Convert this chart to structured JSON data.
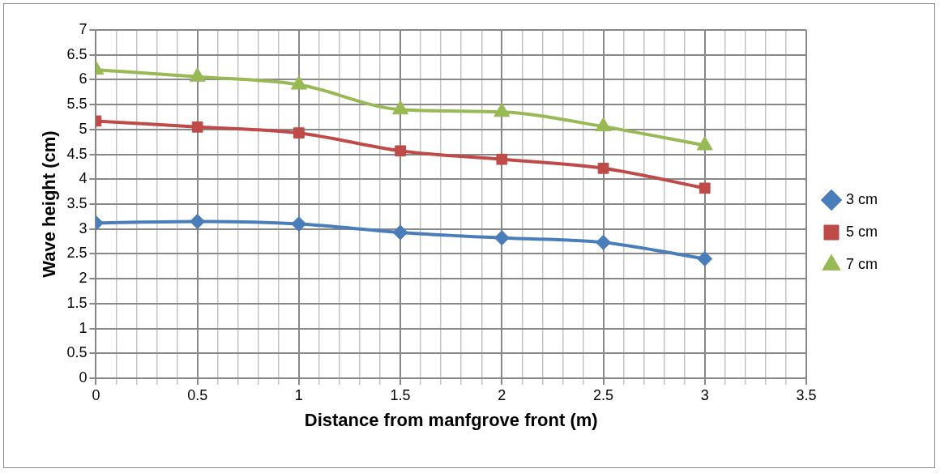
{
  "chart_data": {
    "type": "line",
    "xlabel": "Distance from manfgrove front (m)",
    "ylabel": "Wave height (cm)",
    "x": [
      0,
      0.5,
      1,
      1.5,
      2,
      2.5,
      3
    ],
    "series": [
      {
        "name": "3 cm",
        "color": "#4a7ebb",
        "marker": "diamond",
        "values": [
          3.12,
          3.15,
          3.1,
          2.93,
          2.82,
          2.73,
          2.4
        ]
      },
      {
        "name": "5 cm",
        "color": "#be4b48",
        "marker": "square",
        "values": [
          5.17,
          5.05,
          4.93,
          4.57,
          4.4,
          4.22,
          3.82
        ]
      },
      {
        "name": "7 cm",
        "color": "#98b954",
        "marker": "triangle",
        "values": [
          6.2,
          6.06,
          5.9,
          5.4,
          5.35,
          5.06,
          4.68
        ]
      }
    ],
    "xlim": [
      0,
      3.5
    ],
    "xticks": [
      0,
      {
        "value": 0.1,
        "label": null
      },
      {
        "value": 0.2,
        "label": null
      },
      {
        "value": 0.3,
        "label": null
      },
      {
        "value": 0.4,
        "label": null
      },
      0.5,
      {
        "value": 0.6,
        "label": null
      },
      {
        "value": 0.7,
        "label": null
      },
      {
        "value": 0.8,
        "label": null
      },
      {
        "value": 0.9,
        "label": null
      },
      1,
      {
        "value": 1.1,
        "label": null
      },
      {
        "value": 1.2,
        "label": null
      },
      {
        "value": 1.3,
        "label": null
      },
      {
        "value": 1.4,
        "label": null
      },
      1.5,
      {
        "value": 1.6,
        "label": null
      },
      {
        "value": 1.7,
        "label": null
      },
      {
        "value": 1.8,
        "label": null
      },
      {
        "value": 1.9,
        "label": null
      },
      2,
      {
        "value": 2.1,
        "label": null
      },
      {
        "value": 2.2,
        "label": null
      },
      {
        "value": 2.3,
        "label": null
      },
      {
        "value": 2.4,
        "label": null
      },
      2.5,
      {
        "value": 2.6,
        "label": null
      },
      {
        "value": 2.7,
        "label": null
      },
      {
        "value": 2.8,
        "label": null
      },
      {
        "value": 2.9,
        "label": null
      },
      3,
      {
        "value": 3.1,
        "label": null
      },
      {
        "value": 3.2,
        "label": null
      },
      {
        "value": 3.3,
        "label": null
      },
      {
        "value": 3.4,
        "label": null
      },
      3.5
    ],
    "ylim": [
      0,
      7
    ],
    "yticks": [
      0,
      0.5,
      1,
      1.5,
      2,
      2.5,
      3,
      3.5,
      4,
      4.5,
      5,
      5.5,
      6,
      6.5,
      7
    ],
    "grid": true,
    "legend": "right",
    "line_style": "solid"
  }
}
